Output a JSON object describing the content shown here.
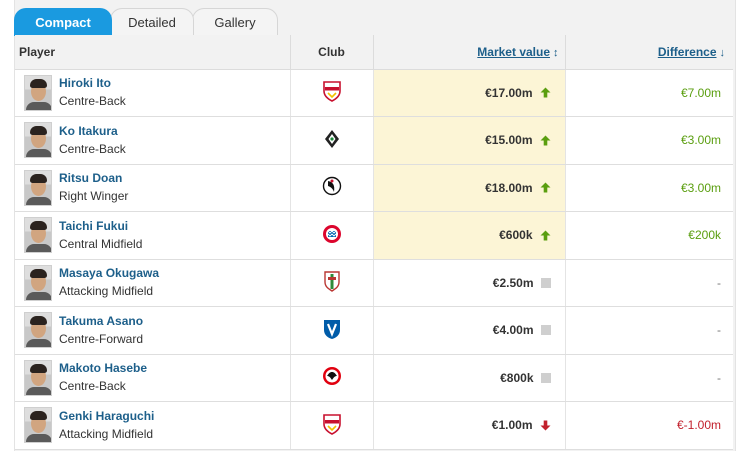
{
  "tabs": [
    {
      "label": "Compact",
      "active": true
    },
    {
      "label": "Detailed",
      "active": false
    },
    {
      "label": "Gallery",
      "active": false
    }
  ],
  "table": {
    "headers": {
      "player": "Player",
      "club": "Club",
      "market_value": "Market value",
      "difference": "Difference"
    },
    "rows": [
      {
        "name": "Hiroki Ito",
        "position": "Centre-Back",
        "club_icon": "vfb-stuttgart-crest-icon",
        "market_value": "€17.00m",
        "trend": "up",
        "difference": "€7.00m",
        "diff_type": "up",
        "highlight": true
      },
      {
        "name": "Ko Itakura",
        "position": "Centre-Back",
        "club_icon": "borussia-monchengladbach-crest-icon",
        "market_value": "€15.00m",
        "trend": "up",
        "difference": "€3.00m",
        "diff_type": "up",
        "highlight": true
      },
      {
        "name": "Ritsu Doan",
        "position": "Right Winger",
        "club_icon": "sc-freiburg-crest-icon",
        "market_value": "€18.00m",
        "trend": "up",
        "difference": "€3.00m",
        "diff_type": "up",
        "highlight": true
      },
      {
        "name": "Taichi Fukui",
        "position": "Central Midfield",
        "club_icon": "bayern-munich-crest-icon",
        "market_value": "€600k",
        "trend": "up",
        "difference": "€200k",
        "diff_type": "up",
        "highlight": true
      },
      {
        "name": "Masaya Okugawa",
        "position": "Attacking Midfield",
        "club_icon": "fc-augsburg-crest-icon",
        "market_value": "€2.50m",
        "trend": "none",
        "difference": "-",
        "diff_type": "neutral",
        "highlight": false
      },
      {
        "name": "Takuma Asano",
        "position": "Centre-Forward",
        "club_icon": "vfl-bochum-crest-icon",
        "market_value": "€4.00m",
        "trend": "none",
        "difference": "-",
        "diff_type": "neutral",
        "highlight": false
      },
      {
        "name": "Makoto Hasebe",
        "position": "Centre-Back",
        "club_icon": "eintracht-frankfurt-crest-icon",
        "market_value": "€800k",
        "trend": "none",
        "difference": "-",
        "diff_type": "neutral",
        "highlight": false
      },
      {
        "name": "Genki Haraguchi",
        "position": "Attacking Midfield",
        "club_icon": "vfb-stuttgart-crest-icon",
        "market_value": "€1.00m",
        "trend": "down",
        "difference": "€-1.00m",
        "diff_type": "down",
        "highlight": false
      }
    ]
  },
  "colors": {
    "accent": "#1a9ae0",
    "link": "#1d5f8a",
    "up": "#5a9e0f",
    "down": "#c2202c",
    "highlight": "#fcf5d6"
  }
}
